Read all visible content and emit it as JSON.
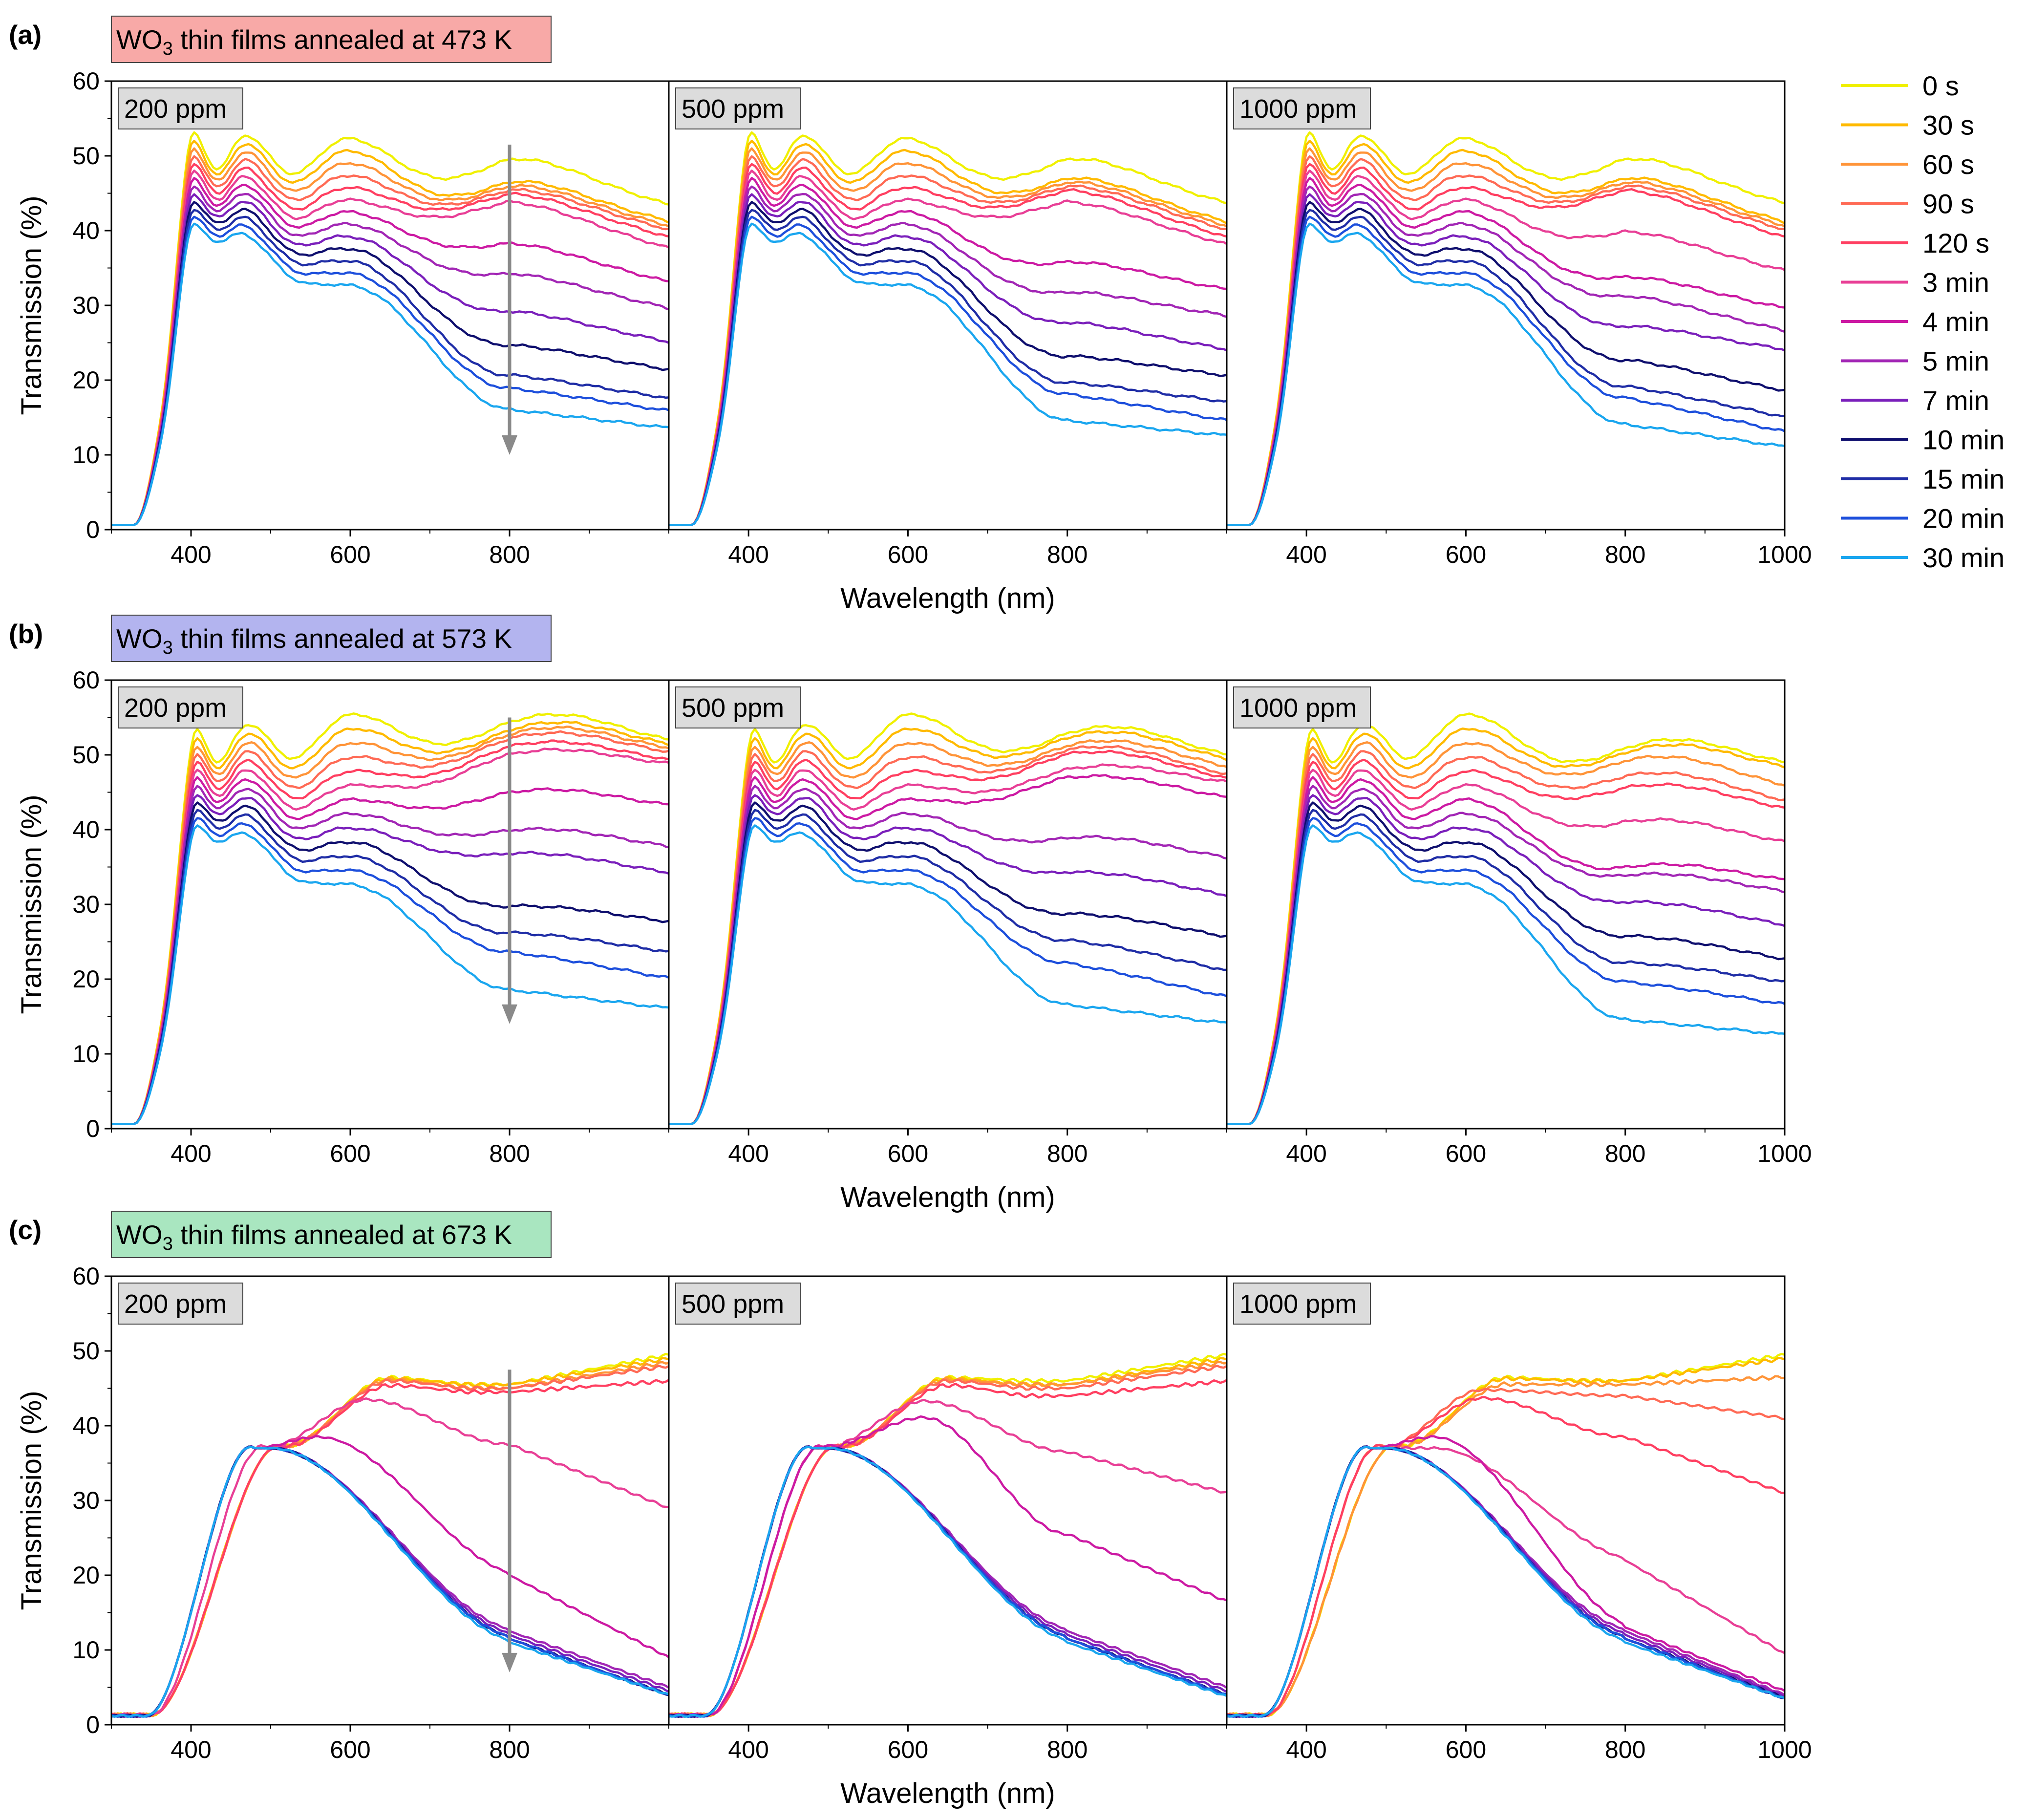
{
  "legend_times": [
    "0 s",
    "30 s",
    "60 s",
    "90 s",
    "120 s",
    "3 min",
    "4 min",
    "5 min",
    "7 min",
    "10 min",
    "15 min",
    "20 min",
    "30 min"
  ],
  "colors": [
    "#f0f000",
    "#ffba00",
    "#ff9438",
    "#ff6a55",
    "#ff3f61",
    "#e83f96",
    "#cc1aa3",
    "#a226b5",
    "#7a1fbb",
    "#0f0f6e",
    "#1f2da6",
    "#1d4fdc",
    "#1aa6ef"
  ],
  "rows": [
    {
      "letter": "(a)",
      "banner": {
        "pre": "WO",
        "sub": "3",
        "post": " thin films annealed at 473 K",
        "color": "#f8a9a7"
      }
    },
    {
      "letter": "(b)",
      "banner": {
        "pre": "WO",
        "sub": "3",
        "post": " thin films annealed at 573 K",
        "color": "#b3b4ef"
      }
    },
    {
      "letter": "(c)",
      "banner": {
        "pre": "WO",
        "sub": "3",
        "post": " thin films annealed at 673 K",
        "color": "#a9e6c0"
      }
    }
  ],
  "panel_labels": [
    "200 ppm",
    "500 ppm",
    "1000 ppm"
  ],
  "axes": {
    "xlabel": "Wavelength (nm)",
    "ylabel": "Transmission (%)",
    "xlim": [
      300,
      1000
    ],
    "ylim": [
      0,
      60
    ],
    "yticks": [
      "0",
      "10",
      "20",
      "30",
      "40",
      "50",
      "60"
    ],
    "xticks_partial": [
      "400",
      "600",
      "800"
    ],
    "xticks_last": [
      "400",
      "600",
      "800",
      "1000"
    ]
  },
  "chart_data": [
    {
      "type": "line",
      "row": "a",
      "concentration": "200 ppm",
      "title": "WO3 thin films annealed at 473 K",
      "xlabel": "Wavelength (nm)",
      "ylabel": "Transmission (%)",
      "ylim": [
        0,
        60
      ],
      "x": [
        300,
        400,
        460,
        530,
        600,
        700,
        800,
        900,
        1000
      ],
      "series_names": [
        "0 s",
        "30 s",
        "60 s",
        "90 s",
        "120 s",
        "3 min",
        "4 min",
        "5 min",
        "7 min",
        "10 min",
        "15 min",
        "20 min",
        "30 min"
      ],
      "values_at_800nm": [
        48.5,
        45.5,
        45,
        44.5,
        44,
        43,
        37.5,
        33.5,
        28.5,
        24,
        20,
        18.3,
        15.5
      ],
      "values_at_1000nm": [
        42.8,
        40.6,
        40,
        39.5,
        38.5,
        37,
        32.5,
        29,
        24.5,
        20.8,
        17,
        15.3,
        13
      ]
    },
    {
      "type": "line",
      "row": "a",
      "concentration": "500 ppm",
      "x": [
        300,
        400,
        460,
        530,
        600,
        700,
        800,
        900,
        1000
      ],
      "series_names": [
        "0 s",
        "30 s",
        "60 s",
        "90 s",
        "120 s",
        "3 min",
        "4 min",
        "5 min",
        "7 min",
        "10 min",
        "15 min",
        "20 min",
        "30 min"
      ],
      "values_at_800nm": [
        48.5,
        46,
        45.5,
        45,
        44.5,
        43,
        35,
        31,
        27,
        22.5,
        19,
        17.5,
        14
      ],
      "values_at_1000nm": [
        43,
        40.5,
        40,
        39.5,
        38.5,
        37.5,
        31.5,
        28,
        23.5,
        20,
        16.5,
        14,
        12
      ]
    },
    {
      "type": "line",
      "row": "a",
      "concentration": "1000 ppm",
      "x": [
        300,
        400,
        460,
        530,
        600,
        700,
        800,
        900,
        1000
      ],
      "series_names": [
        "0 s",
        "30 s",
        "60 s",
        "90 s",
        "120 s",
        "3 min",
        "4 min",
        "5 min",
        "7 min",
        "10 min",
        "15 min",
        "20 min",
        "30 min"
      ],
      "values_at_800nm": [
        48.5,
        46,
        45.5,
        45,
        44.5,
        39,
        33,
        30.5,
        26.5,
        22,
        18.5,
        17,
        13.5
      ],
      "values_at_1000nm": [
        43,
        40.5,
        40,
        39.5,
        38.5,
        34,
        29,
        26,
        23.5,
        18,
        14.5,
        12.5,
        10.5
      ]
    },
    {
      "type": "line",
      "row": "b",
      "concentration": "200 ppm",
      "title": "WO3 thin films annealed at 573 K",
      "xlabel": "Wavelength (nm)",
      "ylabel": "Transmission (%)",
      "ylim": [
        0,
        60
      ],
      "x": [
        300,
        400,
        460,
        530,
        600,
        700,
        800,
        900,
        1000
      ],
      "series_names": [
        "0 s",
        "30 s",
        "60 s",
        "90 s",
        "120 s",
        "3 min",
        "4 min",
        "5 min",
        "7 min",
        "10 min",
        "15 min",
        "20 min",
        "30 min"
      ],
      "values_at_800nm": [
        53,
        52,
        51.5,
        51,
        50,
        49,
        44,
        39,
        36,
        29,
        25.5,
        23,
        18
      ],
      "values_at_1000nm": [
        51,
        50.5,
        50,
        49.5,
        48.5,
        48,
        42.5,
        37,
        33.5,
        27,
        23,
        19.5,
        15.5
      ]
    },
    {
      "type": "line",
      "row": "b",
      "concentration": "500 ppm",
      "x": [
        300,
        400,
        460,
        530,
        600,
        700,
        800,
        900,
        1000
      ],
      "series_names": [
        "0 s",
        "30 s",
        "60 s",
        "90 s",
        "120 s",
        "3 min",
        "4 min",
        "5 min",
        "7 min",
        "10 min",
        "15 min",
        "20 min",
        "30 min"
      ],
      "values_at_800nm": [
        51.5,
        51,
        50,
        49.5,
        49,
        47,
        46,
        38,
        33.5,
        28,
        24.5,
        21.5,
        16
      ],
      "values_at_1000nm": [
        49,
        48.5,
        47.5,
        46.5,
        46,
        45.5,
        43.5,
        35.5,
        30.5,
        25,
        20.5,
        17,
        13.5
      ]
    },
    {
      "type": "line",
      "row": "b",
      "concentration": "1000 ppm",
      "x": [
        300,
        400,
        460,
        530,
        600,
        700,
        800,
        900,
        1000
      ],
      "series_names": [
        "0 s",
        "30 s",
        "60 s",
        "90 s",
        "120 s",
        "3 min",
        "4 min",
        "5 min",
        "7 min",
        "10 min",
        "15 min",
        "20 min",
        "30 min"
      ],
      "values_at_800nm": [
        49.5,
        49,
        48,
        46,
        44.5,
        40,
        34,
        33,
        29.5,
        25,
        21.5,
        19,
        14
      ],
      "values_at_1000nm": [
        48,
        47.5,
        45,
        43,
        42,
        37.5,
        32.5,
        31,
        26.5,
        22,
        19,
        16,
        12
      ]
    },
    {
      "type": "line",
      "row": "c",
      "concentration": "200 ppm",
      "title": "WO3 thin films annealed at 673 K",
      "xlabel": "Wavelength (nm)",
      "ylabel": "Transmission (%)",
      "ylim": [
        0,
        60
      ],
      "x": [
        300,
        400,
        480,
        530,
        600,
        700,
        800,
        900,
        1000
      ],
      "series_names": [
        "0 s",
        "30 s",
        "60 s",
        "90 s",
        "120 s",
        "3 min",
        "4 min",
        "5 min",
        "7 min",
        "10 min",
        "15 min",
        "20 min",
        "30 min"
      ],
      "values_at_800nm": [
        45.5,
        45.5,
        45,
        45,
        44.5,
        37.5,
        20,
        12.5,
        12,
        11.5,
        11.5,
        11.5,
        11
      ],
      "values_at_1000nm": [
        49.5,
        49,
        48.5,
        48,
        46,
        29,
        9,
        5,
        4.5,
        4,
        4,
        4,
        4
      ]
    },
    {
      "type": "line",
      "row": "c",
      "concentration": "500 ppm",
      "x": [
        300,
        400,
        480,
        530,
        600,
        700,
        800,
        900,
        1000
      ],
      "series_names": [
        "0 s",
        "30 s",
        "60 s",
        "90 s",
        "120 s",
        "3 min",
        "4 min",
        "5 min",
        "7 min",
        "10 min",
        "15 min",
        "20 min",
        "30 min"
      ],
      "values_at_800nm": [
        46,
        45.5,
        45.5,
        45,
        44,
        36.5,
        25.5,
        12.5,
        12,
        11.5,
        11.5,
        11.5,
        11
      ],
      "values_at_1000nm": [
        49.5,
        49,
        48.5,
        48,
        46,
        31,
        16.5,
        5,
        4.5,
        4,
        4,
        4,
        3.8
      ]
    },
    {
      "type": "line",
      "row": "c",
      "concentration": "1000 ppm",
      "x": [
        300,
        400,
        480,
        530,
        600,
        700,
        800,
        900,
        1000
      ],
      "series_names": [
        "0 s",
        "30 s",
        "60 s",
        "90 s",
        "120 s",
        "3 min",
        "4 min",
        "5 min",
        "7 min",
        "10 min",
        "15 min",
        "20 min",
        "30 min"
      ],
      "values_at_800nm": [
        46,
        46,
        45.5,
        44,
        38.5,
        22,
        13,
        12.5,
        12,
        11.5,
        11.5,
        11.5,
        11
      ],
      "values_at_1000nm": [
        49.5,
        49,
        46.5,
        41,
        31,
        9.5,
        4.5,
        4,
        3.8,
        3.6,
        3.5,
        3.5,
        3.5
      ]
    }
  ]
}
